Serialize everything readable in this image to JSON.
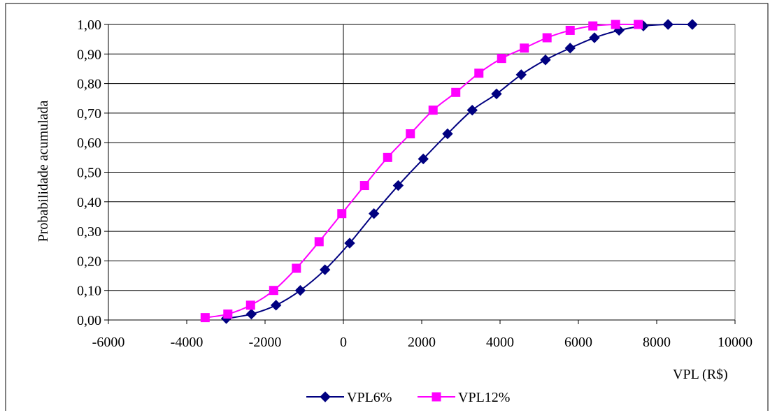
{
  "chart_data": {
    "type": "line",
    "xlabel": "VPL (R$)",
    "ylabel": "Probabilidade acumulada",
    "xlim": [
      -6000,
      10000
    ],
    "ylim": [
      0,
      1
    ],
    "x_ticks": [
      "-6000",
      "-4000",
      "-2000",
      "0",
      "2000",
      "4000",
      "6000",
      "8000",
      "10000"
    ],
    "y_ticks": [
      "0,00",
      "0,10",
      "0,20",
      "0,30",
      "0,40",
      "0,50",
      "0,60",
      "0,70",
      "0,80",
      "0,90",
      "1,00"
    ],
    "grid": "horizontal",
    "legend_position": "bottom",
    "series": [
      {
        "name": "VPL6%",
        "color": "#000080",
        "marker": "diamond",
        "x": [
          -2990,
          -2350,
          -1720,
          -1100,
          -470,
          160,
          780,
          1400,
          2040,
          2660,
          3290,
          3910,
          4540,
          5160,
          5790,
          6410,
          7040,
          7660,
          8290,
          8910
        ],
        "y": [
          0.005,
          0.02,
          0.05,
          0.1,
          0.17,
          0.26,
          0.36,
          0.455,
          0.545,
          0.63,
          0.71,
          0.765,
          0.83,
          0.88,
          0.92,
          0.955,
          0.98,
          0.995,
          1.0,
          1.0
        ]
      },
      {
        "name": "VPL12%",
        "color": "#ff00ff",
        "marker": "square",
        "x": [
          -3530,
          -2950,
          -2370,
          -1780,
          -1200,
          -620,
          -40,
          540,
          1130,
          1710,
          2290,
          2870,
          3460,
          4040,
          4620,
          5200,
          5790,
          6370,
          6950,
          7530
        ],
        "y": [
          0.008,
          0.02,
          0.05,
          0.1,
          0.175,
          0.265,
          0.36,
          0.455,
          0.55,
          0.63,
          0.71,
          0.77,
          0.835,
          0.885,
          0.92,
          0.955,
          0.98,
          0.995,
          1.0,
          1.0
        ]
      }
    ]
  }
}
